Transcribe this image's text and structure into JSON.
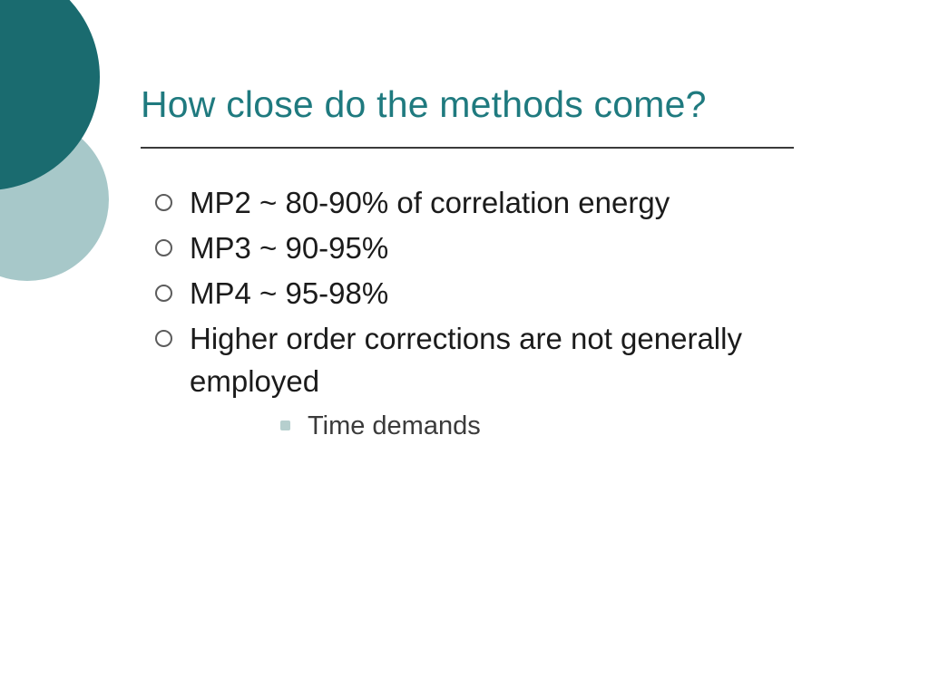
{
  "slide": {
    "title": "How close do the methods come?",
    "title_color": "#1f7a7f",
    "title_fontsize": 41,
    "rule_color": "#3a3a3a",
    "body_fontsize": 33,
    "body_color": "#1b1b1b",
    "sub_fontsize": 29,
    "sub_color": "#3b3b3b",
    "bullet_outline_color": "#5c5c5c",
    "sub_bullet_color": "#b6cfce",
    "background_color": "#ffffff",
    "decor": {
      "dark_circle_color": "#1a6b6f",
      "light_circle_color": "#a7c8c9"
    },
    "bullets": [
      {
        "text": "MP2 ~ 80-90% of correlation energy"
      },
      {
        "text": "MP3 ~ 90-95%"
      },
      {
        "text": "MP4 ~ 95-98%"
      },
      {
        "text": "Higher order corrections are not generally employed",
        "sub": [
          {
            "text": "Time demands"
          }
        ]
      }
    ]
  }
}
